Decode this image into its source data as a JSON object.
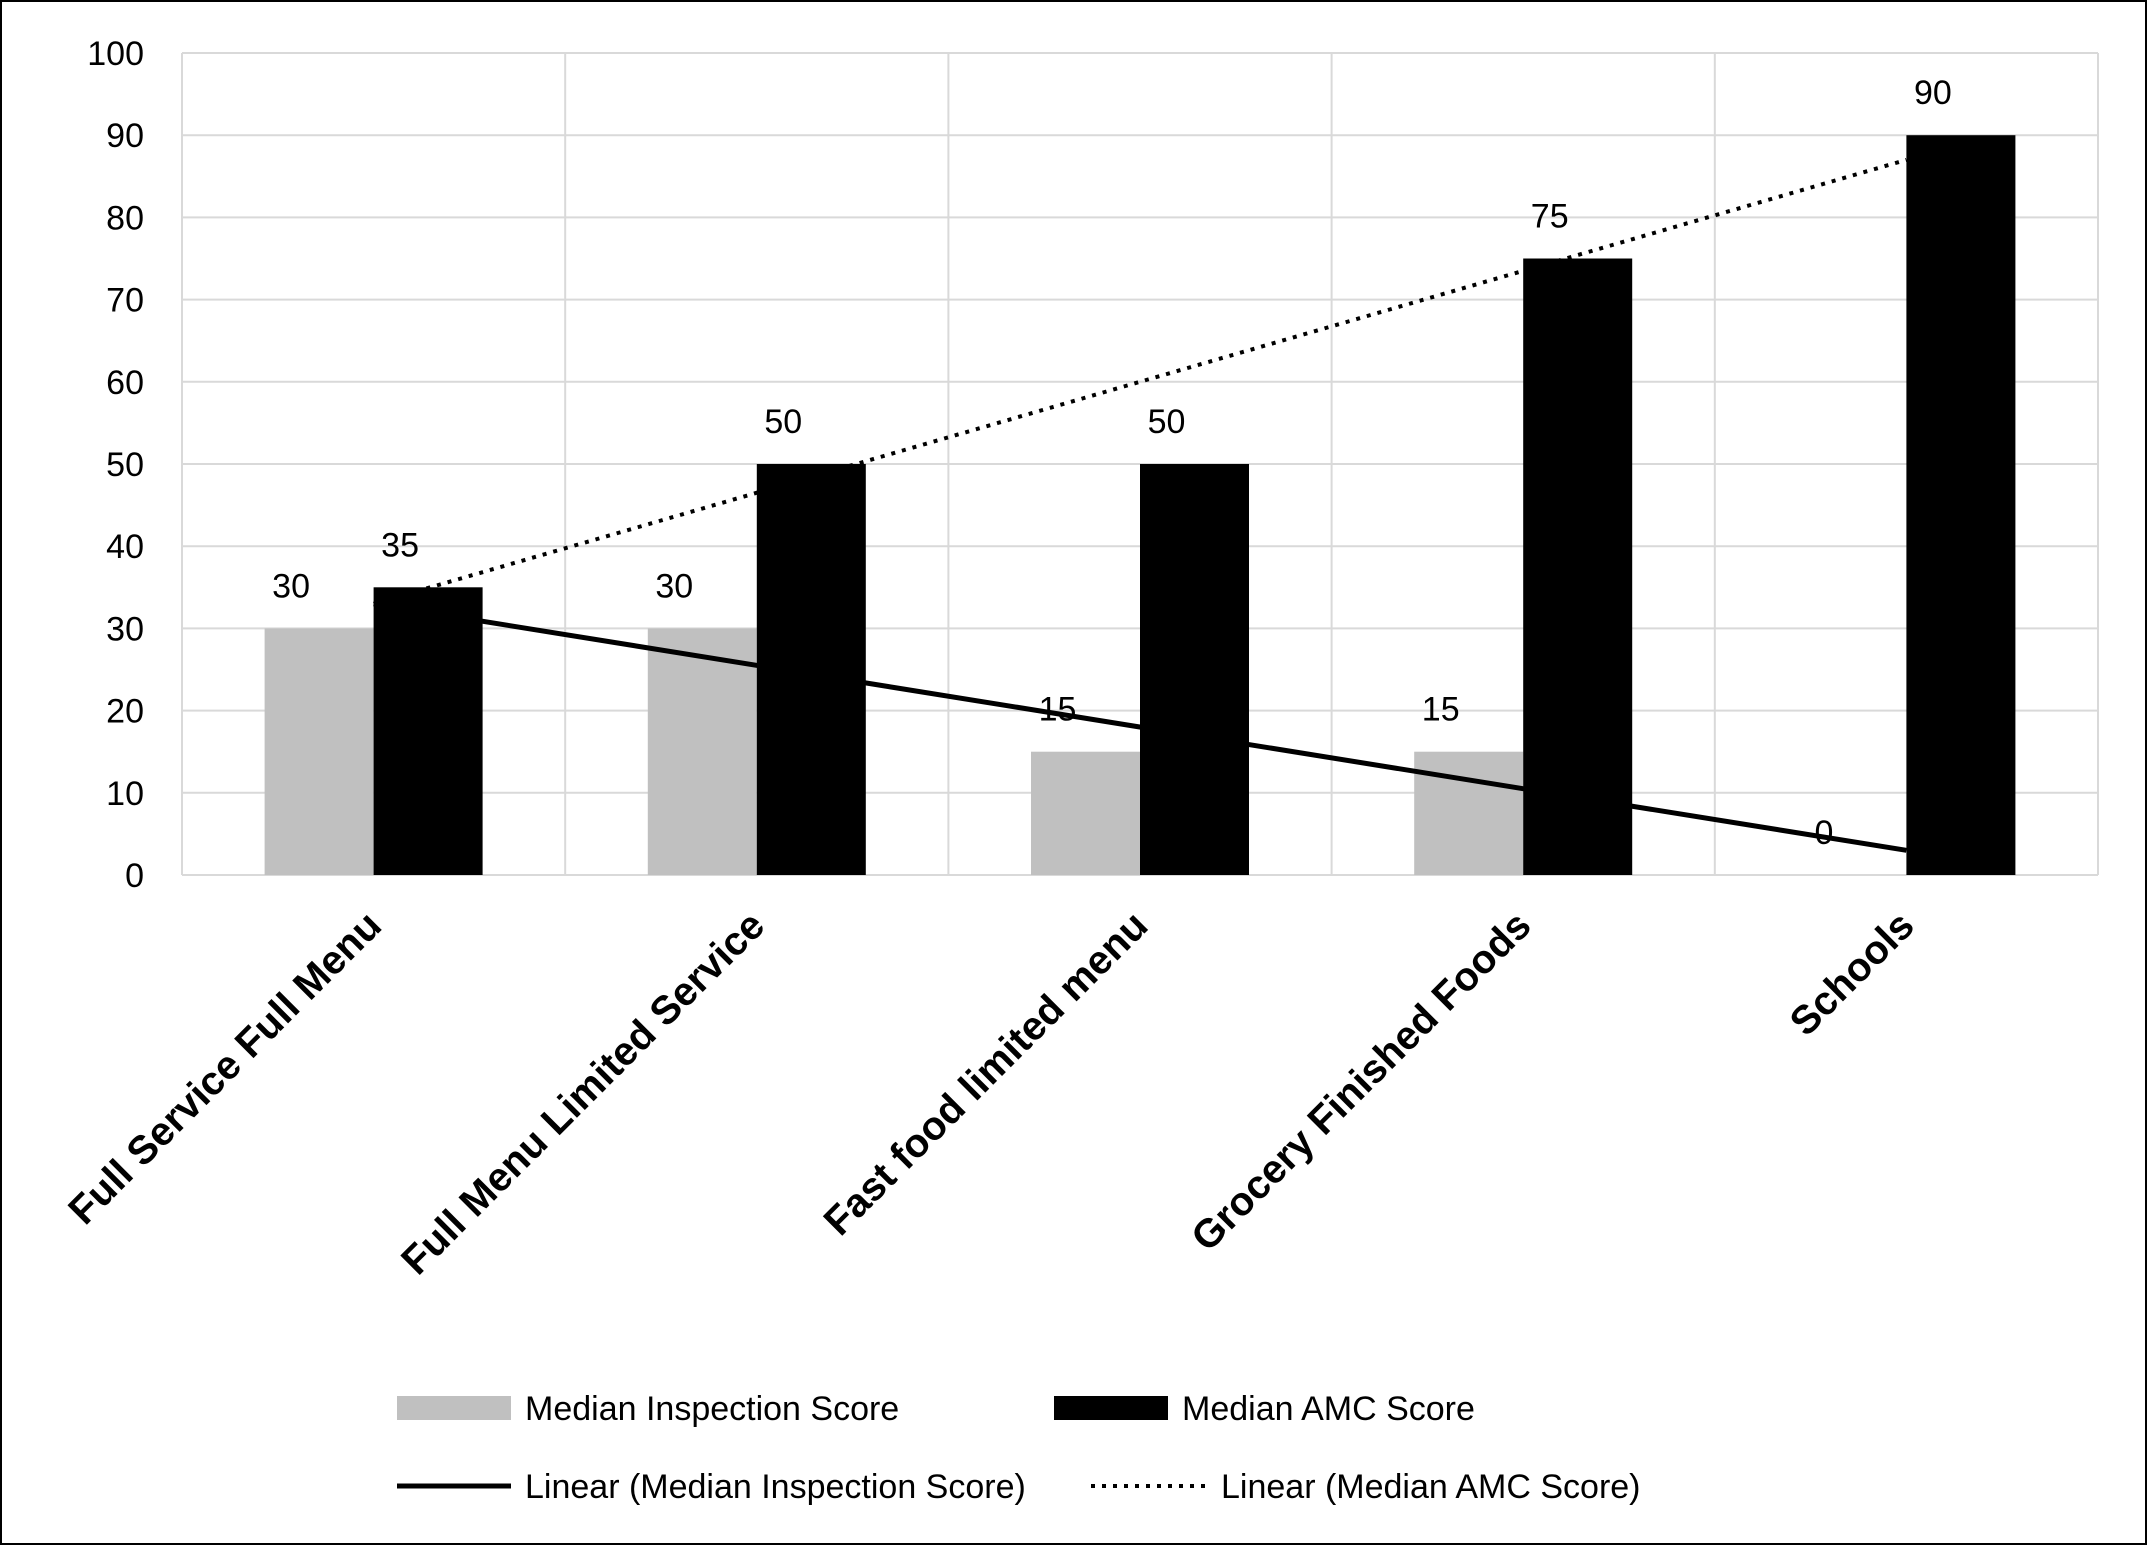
{
  "chart_data": {
    "type": "bar",
    "categories": [
      "Full Service Full Menu",
      "Full Menu Limited Service",
      "Fast food limited menu",
      "Grocery Finished Foods",
      "Schools"
    ],
    "series": [
      {
        "name": "Median Inspection Score",
        "values": [
          30,
          30,
          15,
          15,
          0
        ],
        "color": "#c0c0c0"
      },
      {
        "name": "Median AMC Score",
        "values": [
          35,
          50,
          50,
          75,
          90
        ],
        "color": "#000000"
      }
    ],
    "trendlines": [
      {
        "name": "Linear (Median Inspection Score)",
        "of_series": "Median Inspection Score",
        "style": "solid",
        "color": "#000000"
      },
      {
        "name": "Linear (Median AMC Score)",
        "of_series": "Median AMC Score",
        "style": "dotted",
        "color": "#000000"
      }
    ],
    "yticks": [
      0,
      10,
      20,
      30,
      40,
      50,
      60,
      70,
      80,
      90,
      100
    ],
    "ylim": [
      0,
      100
    ],
    "title": "",
    "xlabel": "",
    "ylabel": "",
    "grid": true,
    "legend": "bottom",
    "data_labels": true
  }
}
